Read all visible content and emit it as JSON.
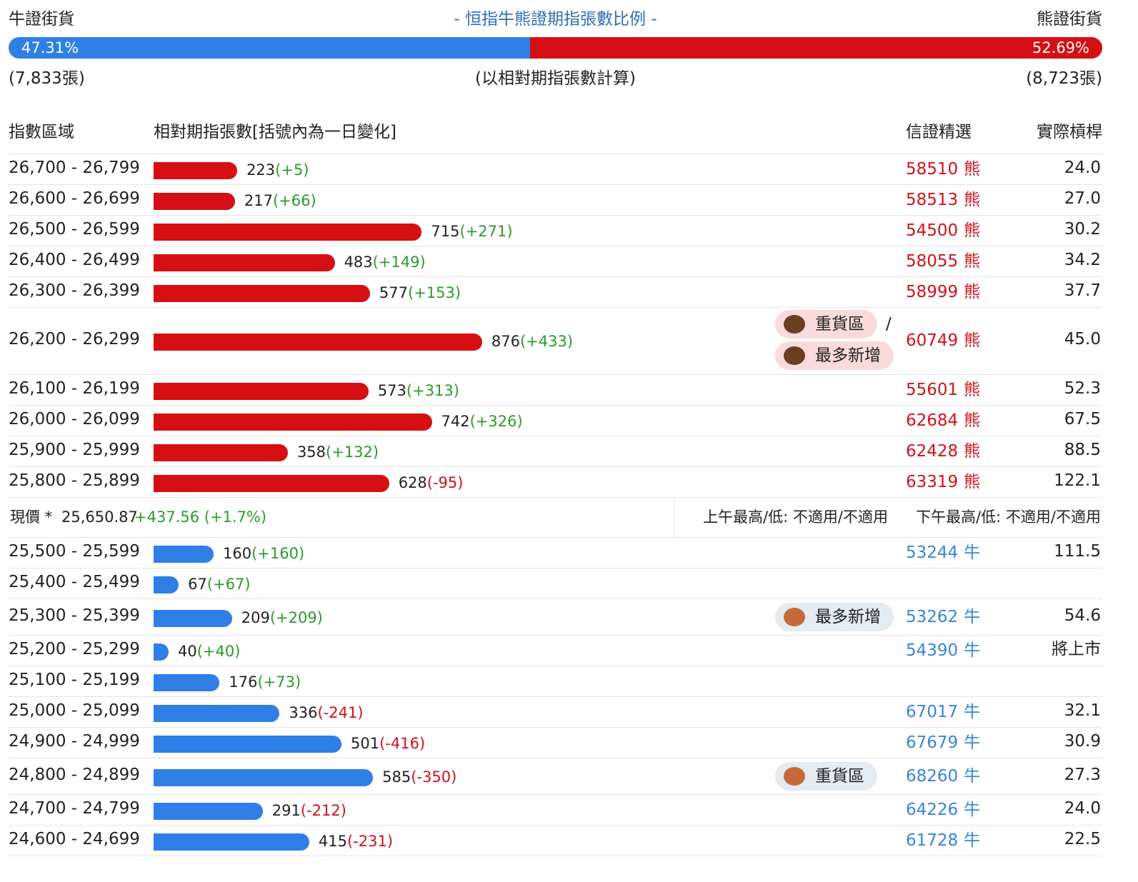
{
  "header": {
    "bull_label": "牛證街貨",
    "title": "- 恒指牛熊證期指張數比例 -",
    "bear_label": "熊證街貨",
    "bull_pct": {
      "value": 47.31,
      "label": "47.31%"
    },
    "bear_pct": {
      "value": 52.69,
      "label": "52.69%"
    },
    "bull_count": "(7,833張)",
    "note": "(以相對期指張數計算)",
    "bear_count": "(8,723張)"
  },
  "columns": [
    "指數區域",
    "相對期指張數[括號內為一日變化]",
    "信證精選",
    "實際槓桿"
  ],
  "bear_rows": [
    {
      "range": "26,700 - 26,799",
      "contracts": 223,
      "change": "(+5)",
      "warrant": "58510",
      "kind": "熊",
      "leverage": "24.0"
    },
    {
      "range": "26,600 - 26,699",
      "contracts": 217,
      "change": "(+66)",
      "warrant": "58513",
      "kind": "熊",
      "leverage": "27.0"
    },
    {
      "range": "26,500 - 26,599",
      "contracts": 715,
      "change": "(+271)",
      "warrant": "54500",
      "kind": "熊",
      "leverage": "30.2"
    },
    {
      "range": "26,400 - 26,499",
      "contracts": 483,
      "change": "(+149)",
      "warrant": "58055",
      "kind": "熊",
      "leverage": "34.2"
    },
    {
      "range": "26,300 - 26,399",
      "contracts": 577,
      "change": "(+153)",
      "warrant": "58999",
      "kind": "熊",
      "leverage": "37.7"
    },
    {
      "range": "26,200 - 26,299",
      "contracts": 876,
      "change": "(+433)",
      "tags": [
        "重貨區",
        "最多新增"
      ],
      "tag_separator": "/",
      "warrant": "60749",
      "kind": "熊",
      "leverage": "45.0"
    },
    {
      "range": "26,100 - 26,199",
      "contracts": 573,
      "change": "(+313)",
      "warrant": "55601",
      "kind": "熊",
      "leverage": "52.3"
    },
    {
      "range": "26,000 - 26,099",
      "contracts": 742,
      "change": "(+326)",
      "warrant": "62684",
      "kind": "熊",
      "leverage": "67.5"
    },
    {
      "range": "25,900 - 25,999",
      "contracts": 358,
      "change": "(+132)",
      "warrant": "62428",
      "kind": "熊",
      "leverage": "88.5"
    },
    {
      "range": "25,800 - 25,899",
      "contracts": 628,
      "change": "(-95)",
      "warrant": "63319",
      "kind": "熊",
      "leverage": "122.1"
    }
  ],
  "spot": {
    "label": "現價 *",
    "price": "25,650.87",
    "change": "+437.56 (+1.7%)",
    "am": "上午最高/低: 不適用/不適用",
    "pm": "下午最高/低: 不適用/不適用"
  },
  "bull_rows": [
    {
      "range": "25,500 - 25,599",
      "contracts": 160,
      "change": "(+160)",
      "warrant": "53244",
      "kind": "牛",
      "leverage": "111.5"
    },
    {
      "range": "25,400 - 25,499",
      "contracts": 67,
      "change": "(+67)"
    },
    {
      "range": "25,300 - 25,399",
      "contracts": 209,
      "change": "(+209)",
      "tags": [
        "最多新增"
      ],
      "warrant": "53262",
      "kind": "牛",
      "leverage": "54.6"
    },
    {
      "range": "25,200 - 25,299",
      "contracts": 40,
      "change": "(+40)",
      "warrant": "54390",
      "kind": "牛",
      "leverage": "將上市"
    },
    {
      "range": "25,100 - 25,199",
      "contracts": 176,
      "change": "(+73)"
    },
    {
      "range": "25,000 - 25,099",
      "contracts": 336,
      "change": "(-241)",
      "warrant": "67017",
      "kind": "牛",
      "leverage": "32.1"
    },
    {
      "range": "24,900 - 24,999",
      "contracts": 501,
      "change": "(-416)",
      "warrant": "67679",
      "kind": "牛",
      "leverage": "30.9"
    },
    {
      "range": "24,800 - 24,899",
      "contracts": 585,
      "change": "(-350)",
      "tags": [
        "重貨區"
      ],
      "warrant": "68260",
      "kind": "牛",
      "leverage": "27.3"
    },
    {
      "range": "24,700 - 24,799",
      "contracts": 291,
      "change": "(-212)",
      "warrant": "64226",
      "kind": "牛",
      "leverage": "24.0"
    },
    {
      "range": "24,600 - 24,699",
      "contracts": 415,
      "change": "(-231)",
      "warrant": "61728",
      "kind": "牛",
      "leverage": "22.5"
    }
  ]
}
